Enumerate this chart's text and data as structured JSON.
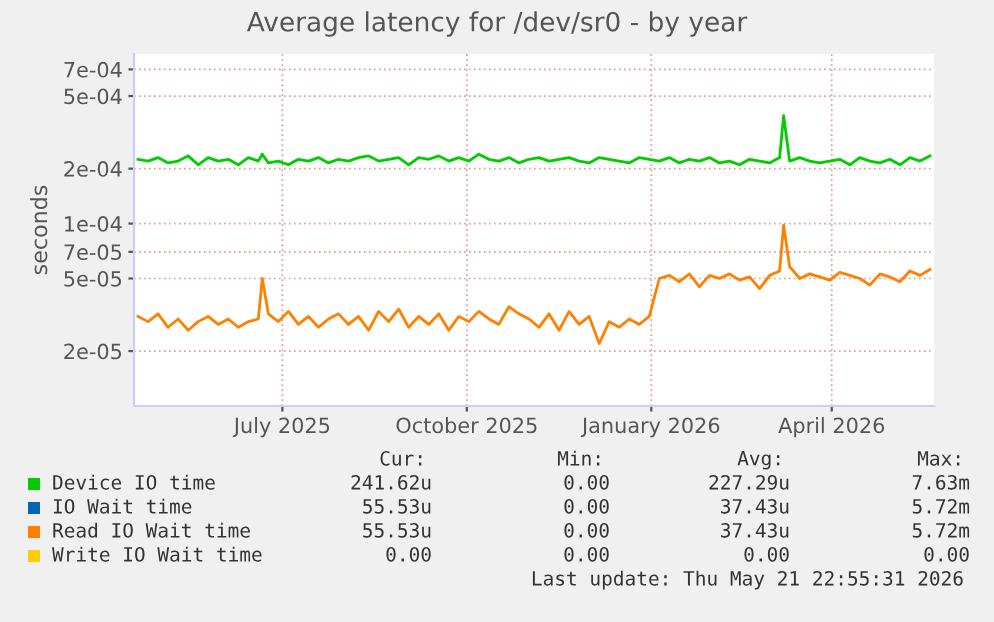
{
  "chart_data": {
    "type": "line",
    "title": "Average latency for /dev/sr0 - by year",
    "ylabel": "seconds",
    "log": "y",
    "grid": true,
    "legend": "bottom",
    "marker": "none",
    "line_style": "solid",
    "xlim": [
      "2025-04-18",
      "2026-05-22"
    ],
    "xticks": [
      {
        "value": "2025-07-01",
        "label": "July 2025"
      },
      {
        "value": "2025-10-01",
        "label": "October 2025"
      },
      {
        "value": "2026-01-01",
        "label": "January 2026"
      },
      {
        "value": "2026-04-01",
        "label": "April 2026"
      }
    ],
    "ylim": [
      1e-05,
      0.00085
    ],
    "yticks": [
      {
        "value": 2e-05,
        "label": "2e-05"
      },
      {
        "value": 5e-05,
        "label": "5e-05"
      },
      {
        "value": 7e-05,
        "label": "7e-05"
      },
      {
        "value": 0.0001,
        "label": "1e-04"
      },
      {
        "value": 0.0002,
        "label": "2e-04"
      },
      {
        "value": 0.0005,
        "label": "5e-04"
      },
      {
        "value": 0.0007,
        "label": "7e-04"
      }
    ],
    "x": [
      "2025-04-20",
      "2025-04-25",
      "2025-04-30",
      "2025-05-05",
      "2025-05-10",
      "2025-05-15",
      "2025-05-20",
      "2025-05-25",
      "2025-05-30",
      "2025-06-04",
      "2025-06-09",
      "2025-06-14",
      "2025-06-19",
      "2025-06-21",
      "2025-06-24",
      "2025-06-29",
      "2025-07-04",
      "2025-07-09",
      "2025-07-14",
      "2025-07-19",
      "2025-07-24",
      "2025-07-29",
      "2025-08-03",
      "2025-08-08",
      "2025-08-13",
      "2025-08-18",
      "2025-08-23",
      "2025-08-28",
      "2025-09-02",
      "2025-09-07",
      "2025-09-12",
      "2025-09-17",
      "2025-09-22",
      "2025-09-27",
      "2025-10-02",
      "2025-10-07",
      "2025-10-12",
      "2025-10-17",
      "2025-10-22",
      "2025-10-27",
      "2025-11-01",
      "2025-11-06",
      "2025-11-11",
      "2025-11-16",
      "2025-11-21",
      "2025-11-26",
      "2025-12-01",
      "2025-12-06",
      "2025-12-11",
      "2025-12-16",
      "2025-12-21",
      "2025-12-26",
      "2025-12-31",
      "2026-01-05",
      "2026-01-10",
      "2026-01-15",
      "2026-01-20",
      "2026-01-25",
      "2026-01-30",
      "2026-02-04",
      "2026-02-09",
      "2026-02-14",
      "2026-02-19",
      "2026-02-24",
      "2026-03-01",
      "2026-03-06",
      "2026-03-08",
      "2026-03-11",
      "2026-03-16",
      "2026-03-21",
      "2026-03-26",
      "2026-03-31",
      "2026-04-05",
      "2026-04-10",
      "2026-04-15",
      "2026-04-20",
      "2026-04-25",
      "2026-04-30",
      "2026-05-05",
      "2026-05-10",
      "2026-05-15",
      "2026-05-20"
    ],
    "series": [
      {
        "name": "Device IO time",
        "color": "#00cc00",
        "values": [
          0.000225,
          0.00022,
          0.00023,
          0.000215,
          0.00022,
          0.000235,
          0.00021,
          0.00023,
          0.00022,
          0.000225,
          0.00021,
          0.00023,
          0.00022,
          0.00024,
          0.000215,
          0.00022,
          0.00021,
          0.000225,
          0.00022,
          0.00023,
          0.000215,
          0.000225,
          0.00022,
          0.00023,
          0.000235,
          0.00022,
          0.000225,
          0.00023,
          0.00021,
          0.00023,
          0.000225,
          0.000235,
          0.00022,
          0.00023,
          0.00022,
          0.00024,
          0.000225,
          0.00022,
          0.00023,
          0.000215,
          0.000225,
          0.00023,
          0.00022,
          0.000225,
          0.00023,
          0.00022,
          0.000215,
          0.00023,
          0.000225,
          0.00022,
          0.000215,
          0.00023,
          0.000225,
          0.00022,
          0.00023,
          0.000215,
          0.000225,
          0.00022,
          0.00023,
          0.000215,
          0.00022,
          0.00021,
          0.000225,
          0.00022,
          0.000215,
          0.00023,
          0.00039,
          0.00022,
          0.00023,
          0.00022,
          0.000215,
          0.00022,
          0.000225,
          0.00021,
          0.00023,
          0.00022,
          0.000215,
          0.000225,
          0.00021,
          0.00023,
          0.00022,
          0.000235
        ]
      },
      {
        "name": "IO Wait time",
        "color": "#0066b3",
        "values": [
          null,
          null,
          null,
          null,
          null,
          null,
          null,
          null,
          null,
          null,
          null,
          null,
          null,
          null,
          null,
          null,
          null,
          null,
          null,
          null,
          null,
          null,
          null,
          null,
          null,
          null,
          null,
          null,
          null,
          null,
          null,
          null,
          null,
          null,
          null,
          null,
          null,
          null,
          null,
          null,
          null,
          null,
          null,
          null,
          null,
          null,
          null,
          null,
          null,
          null,
          null,
          null,
          null,
          null,
          null,
          null,
          null,
          null,
          null,
          null,
          null,
          null,
          null,
          null,
          null,
          null,
          null,
          null,
          null,
          null,
          null,
          null,
          null,
          null,
          null,
          null,
          null,
          null,
          null,
          null,
          null,
          null
        ]
      },
      {
        "name": "Read IO Wait time",
        "color": "#ff8000",
        "values": [
          3.1e-05,
          2.9e-05,
          3.2e-05,
          2.7e-05,
          3e-05,
          2.6e-05,
          2.9e-05,
          3.1e-05,
          2.8e-05,
          3e-05,
          2.7e-05,
          2.9e-05,
          3e-05,
          5e-05,
          3.2e-05,
          2.9e-05,
          3.3e-05,
          2.8e-05,
          3.1e-05,
          2.7e-05,
          3e-05,
          3.2e-05,
          2.8e-05,
          3.1e-05,
          2.6e-05,
          3.3e-05,
          2.9e-05,
          3.4e-05,
          2.7e-05,
          3.1e-05,
          2.8e-05,
          3.2e-05,
          2.6e-05,
          3.1e-05,
          2.9e-05,
          3.3e-05,
          3e-05,
          2.8e-05,
          3.5e-05,
          3.2e-05,
          3e-05,
          2.7e-05,
          3.2e-05,
          2.6e-05,
          3.3e-05,
          2.8e-05,
          3.1e-05,
          2.2e-05,
          2.9e-05,
          2.7e-05,
          3e-05,
          2.8e-05,
          3.1e-05,
          5e-05,
          5.2e-05,
          4.8e-05,
          5.3e-05,
          4.5e-05,
          5.2e-05,
          5e-05,
          5.3e-05,
          4.9e-05,
          5.1e-05,
          4.4e-05,
          5.2e-05,
          5.5e-05,
          9.8e-05,
          5.8e-05,
          5e-05,
          5.3e-05,
          5.1e-05,
          4.9e-05,
          5.4e-05,
          5.2e-05,
          5e-05,
          4.6e-05,
          5.3e-05,
          5.1e-05,
          4.8e-05,
          5.5e-05,
          5.2e-05,
          5.6e-05
        ]
      },
      {
        "name": "Write IO Wait time",
        "color": "#ffcc00",
        "values": [
          null,
          null,
          null,
          null,
          null,
          null,
          null,
          null,
          null,
          null,
          null,
          null,
          null,
          null,
          null,
          null,
          null,
          null,
          null,
          null,
          null,
          null,
          null,
          null,
          null,
          null,
          null,
          null,
          null,
          null,
          null,
          null,
          null,
          null,
          null,
          null,
          null,
          null,
          null,
          null,
          null,
          null,
          null,
          null,
          null,
          null,
          null,
          null,
          null,
          null,
          null,
          null,
          null,
          null,
          null,
          null,
          null,
          null,
          null,
          null,
          null,
          null,
          null,
          null,
          null,
          null,
          null,
          null,
          null,
          null,
          null,
          null,
          null,
          null,
          null,
          null,
          null,
          null,
          null,
          null,
          null,
          null
        ]
      }
    ],
    "annotations": [
      "Cur:",
      "Min:",
      "Avg:",
      "Max:",
      "241.62u",
      "0.00",
      "227.29u",
      "7.63m",
      "55.53u",
      "0.00",
      "37.43u",
      "5.72m",
      "55.53u",
      "0.00",
      "37.43u",
      "5.72m",
      "0.00",
      "0.00",
      "0.00",
      "0.00",
      "Last update: Thu May 21 22:55:31 2026"
    ]
  }
}
